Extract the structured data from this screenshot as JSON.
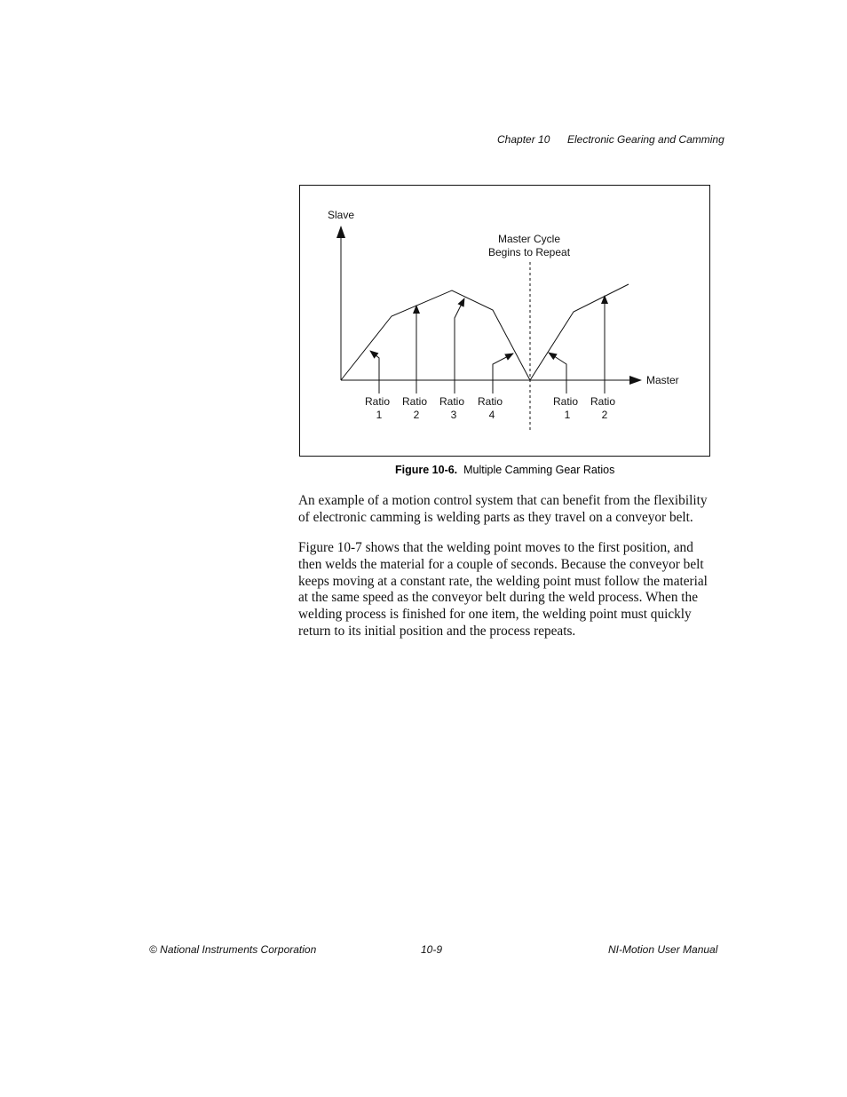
{
  "header": {
    "chapter": "Chapter 10",
    "title": "Electronic Gearing and Camming"
  },
  "figure": {
    "slave_label": "Slave",
    "master_label": "Master",
    "repeat_label": [
      "Master Cycle",
      "Begins to Repeat"
    ],
    "ratios": [
      [
        "Ratio",
        "1"
      ],
      [
        "Ratio",
        "2"
      ],
      [
        "Ratio",
        "3"
      ],
      [
        "Ratio",
        "4"
      ],
      [
        "Ratio",
        "1"
      ],
      [
        "Ratio",
        "2"
      ]
    ],
    "caption": {
      "label": "Figure 10-6.",
      "text": "Multiple Camming Gear Ratios"
    }
  },
  "paragraphs": [
    [
      "An example of a motion control system that can benefit from the flexibility",
      "of electronic camming is welding parts as they travel on a conveyor belt."
    ],
    [
      "Figure 10-7 shows that the welding point moves to the first position, and",
      "then welds the material for a couple of seconds. Because the conveyor belt",
      "keeps moving at a constant rate, the welding point must follow the material",
      "at the same speed as the conveyor belt during the weld process. When the",
      "welding process is finished for one item, the welding point must quickly",
      "return to its initial position and the process repeats."
    ]
  ],
  "footer": {
    "left": "© National Instruments Corporation",
    "center": "10-9",
    "right": "NI-Motion User Manual"
  }
}
